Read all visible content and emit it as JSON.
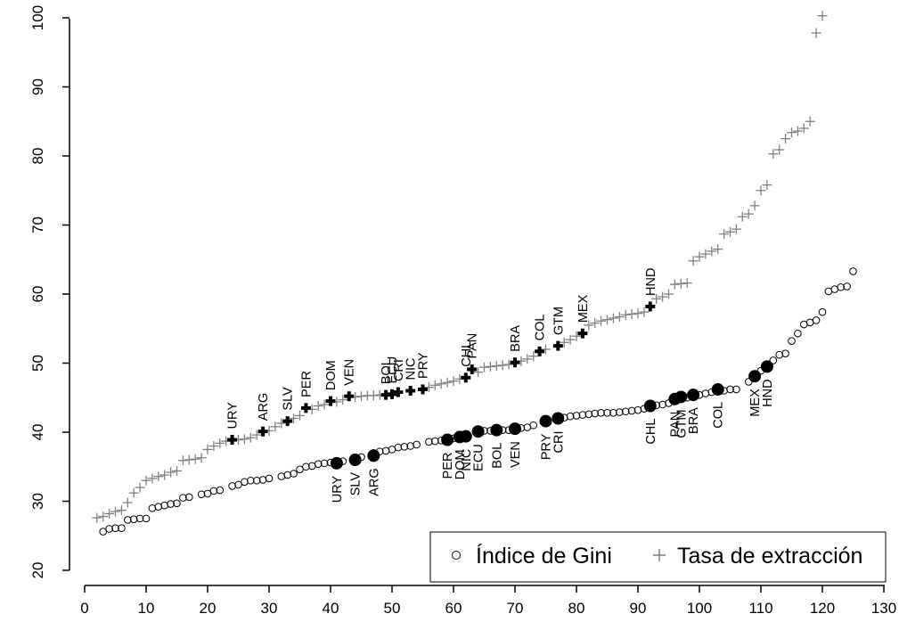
{
  "chart_data": {
    "type": "scatter",
    "title": "",
    "xlabel": "",
    "ylabel": "",
    "xlim": [
      0,
      130
    ],
    "ylim": [
      20,
      100
    ],
    "xticks": [
      0,
      10,
      20,
      30,
      40,
      50,
      60,
      70,
      80,
      90,
      100,
      110,
      120,
      130
    ],
    "yticks": [
      20,
      30,
      40,
      50,
      60,
      70,
      80,
      90,
      100
    ],
    "grid": false,
    "legend_position": "bottom-right",
    "legend": [
      {
        "label": "Índice de Gini",
        "marker": "hollow-circle"
      },
      {
        "label": "Tasa de extracción",
        "marker": "plus"
      }
    ],
    "series": [
      {
        "name": "Índice de Gini",
        "marker": "hollow-circle",
        "color": "#000000",
        "x": [
          3,
          4,
          5,
          6,
          7,
          8,
          9,
          10,
          11,
          12,
          13,
          14,
          15,
          16,
          17,
          19,
          20,
          21,
          22,
          24,
          25,
          26,
          27,
          28,
          29,
          30,
          32,
          33,
          34,
          35,
          36,
          37,
          38,
          39,
          40,
          42,
          45,
          47,
          48,
          49,
          50,
          51,
          52,
          53,
          54,
          56,
          57,
          58,
          59,
          60,
          64,
          65,
          66,
          68,
          69,
          71,
          72,
          73,
          77,
          78,
          79,
          80,
          81,
          82,
          83,
          84,
          85,
          86,
          87,
          88,
          89,
          90,
          91,
          93,
          94,
          95,
          98,
          100,
          101,
          102,
          104,
          105,
          106,
          108,
          110,
          112,
          113,
          114,
          115,
          116,
          117,
          118,
          119,
          120,
          121,
          122,
          123,
          124,
          125
        ],
        "y": [
          25.6,
          26.0,
          26.1,
          26.1,
          27.3,
          27.4,
          27.5,
          27.5,
          29.0,
          29.2,
          29.4,
          29.6,
          29.7,
          30.5,
          30.6,
          31.0,
          31.1,
          31.5,
          31.6,
          32.2,
          32.4,
          32.8,
          33.0,
          33.0,
          33.1,
          33.3,
          33.6,
          33.8,
          34.0,
          34.6,
          35.0,
          35.1,
          35.4,
          35.5,
          35.6,
          35.8,
          36.4,
          37.0,
          37.2,
          37.3,
          37.5,
          37.8,
          37.9,
          38.0,
          38.2,
          38.6,
          38.7,
          38.8,
          38.9,
          39.1,
          40.1,
          40.2,
          40.2,
          40.3,
          40.3,
          40.6,
          40.7,
          41.0,
          42.0,
          42.1,
          42.3,
          42.4,
          42.5,
          42.6,
          42.7,
          42.8,
          42.8,
          42.8,
          42.9,
          43.0,
          43.1,
          43.2,
          43.4,
          43.9,
          44.0,
          44.2,
          45.0,
          45.4,
          45.6,
          45.8,
          46.0,
          46.2,
          46.2,
          47.3,
          48.9,
          50.4,
          51.2,
          51.4,
          53.2,
          54.3,
          55.6,
          55.9,
          56.2,
          57.4,
          60.4,
          60.7,
          61.0,
          61.1,
          63.3
        ]
      },
      {
        "name": "Tasa de extracción",
        "marker": "plus",
        "color": "#7f7f7f",
        "x": [
          2,
          3,
          4,
          5,
          6,
          7,
          8,
          9,
          10,
          11,
          12,
          13,
          14,
          15,
          16,
          17,
          18,
          19,
          20,
          21,
          22,
          23,
          25,
          26,
          27,
          28,
          30,
          31,
          32,
          34,
          35,
          37,
          38,
          39,
          41,
          42,
          44,
          45,
          46,
          47,
          48,
          56,
          57,
          58,
          59,
          60,
          61,
          64,
          65,
          66,
          67,
          68,
          69,
          71,
          72,
          73,
          75,
          78,
          79,
          80,
          82,
          83,
          84,
          85,
          86,
          87,
          88,
          89,
          90,
          91,
          93,
          94,
          95,
          96,
          97,
          98,
          99,
          100,
          101,
          102,
          103,
          104,
          105,
          106,
          107,
          108,
          109,
          110,
          111,
          112,
          113,
          114,
          115,
          116,
          117,
          118,
          119,
          120
        ],
        "y": [
          27.6,
          27.8,
          28.2,
          28.5,
          28.7,
          29.8,
          31.2,
          32.0,
          33.0,
          33.3,
          33.6,
          33.8,
          34.2,
          34.4,
          35.9,
          36.0,
          36.1,
          36.3,
          37.5,
          38.0,
          38.4,
          38.7,
          38.9,
          39.0,
          39.2,
          39.6,
          40.2,
          40.8,
          41.3,
          42.0,
          42.4,
          43.3,
          43.8,
          44.0,
          44.4,
          44.7,
          45.1,
          45.2,
          45.3,
          45.3,
          45.4,
          46.5,
          46.8,
          47.0,
          47.2,
          47.4,
          47.7,
          48.7,
          49.4,
          49.5,
          49.6,
          49.7,
          49.8,
          50.3,
          50.6,
          51.0,
          52.0,
          53.0,
          53.4,
          53.9,
          55.5,
          55.8,
          56.1,
          56.3,
          56.5,
          56.7,
          57.0,
          57.1,
          57.2,
          57.4,
          59.3,
          59.6,
          60.0,
          61.4,
          61.5,
          61.6,
          64.8,
          65.4,
          65.8,
          66.2,
          66.5,
          68.7,
          69.0,
          69.4,
          71.2,
          71.6,
          72.8,
          75.0,
          75.8,
          80.3,
          80.9,
          82.5,
          83.4,
          83.6,
          84.0,
          85.0,
          97.8,
          100.3
        ]
      },
      {
        "name": "",
        "marker": "filled-circle",
        "color": "#000000",
        "points": [
          {
            "label": "URY",
            "x": 41,
            "y": 35.5
          },
          {
            "label": "SLV",
            "x": 44,
            "y": 36.0
          },
          {
            "label": "ARG",
            "x": 47,
            "y": 36.6
          },
          {
            "label": "PER",
            "x": 59,
            "y": 38.9
          },
          {
            "label": "DOM",
            "x": 61,
            "y": 39.3
          },
          {
            "label": "NIC",
            "x": 62,
            "y": 39.4
          },
          {
            "label": "ECU",
            "x": 64,
            "y": 40.1
          },
          {
            "label": "BOL",
            "x": 67,
            "y": 40.3
          },
          {
            "label": "VEN",
            "x": 70,
            "y": 40.5
          },
          {
            "label": "PRY",
            "x": 75,
            "y": 41.6
          },
          {
            "label": "CRI",
            "x": 77,
            "y": 42.0
          },
          {
            "label": "CHL",
            "x": 92,
            "y": 43.8
          },
          {
            "label": "PAN",
            "x": 96,
            "y": 44.8
          },
          {
            "label": "GTM",
            "x": 97,
            "y": 45.1
          },
          {
            "label": "BRA",
            "x": 99,
            "y": 45.4
          },
          {
            "label": "COL",
            "x": 103,
            "y": 46.2
          },
          {
            "label": "MEX",
            "x": 109,
            "y": 48.1
          },
          {
            "label": "HND",
            "x": 111,
            "y": 49.5
          }
        ]
      },
      {
        "name": "",
        "marker": "bold-plus",
        "color": "#000000",
        "points": [
          {
            "label": "URY",
            "x": 24,
            "y": 38.9
          },
          {
            "label": "ARG",
            "x": 29,
            "y": 40.1
          },
          {
            "label": "SLV",
            "x": 33,
            "y": 41.6
          },
          {
            "label": "PER",
            "x": 36,
            "y": 43.5
          },
          {
            "label": "DOM",
            "x": 40,
            "y": 44.5
          },
          {
            "label": "VEN",
            "x": 43,
            "y": 45.2
          },
          {
            "label": "BOL",
            "x": 49,
            "y": 45.4
          },
          {
            "label": "ECU",
            "x": 50,
            "y": 45.5
          },
          {
            "label": "CRI",
            "x": 51,
            "y": 45.8
          },
          {
            "label": "NIC",
            "x": 53,
            "y": 46.0
          },
          {
            "label": "PRY",
            "x": 55,
            "y": 46.2
          },
          {
            "label": "CHL",
            "x": 62,
            "y": 47.9
          },
          {
            "label": "PAN",
            "x": 63,
            "y": 49.1
          },
          {
            "label": "BRA",
            "x": 70,
            "y": 50.1
          },
          {
            "label": "COL",
            "x": 74,
            "y": 51.7
          },
          {
            "label": "GTM",
            "x": 77,
            "y": 52.5
          },
          {
            "label": "MEX",
            "x": 81,
            "y": 54.3
          },
          {
            "label": "HND",
            "x": 92,
            "y": 58.2
          }
        ]
      }
    ]
  }
}
